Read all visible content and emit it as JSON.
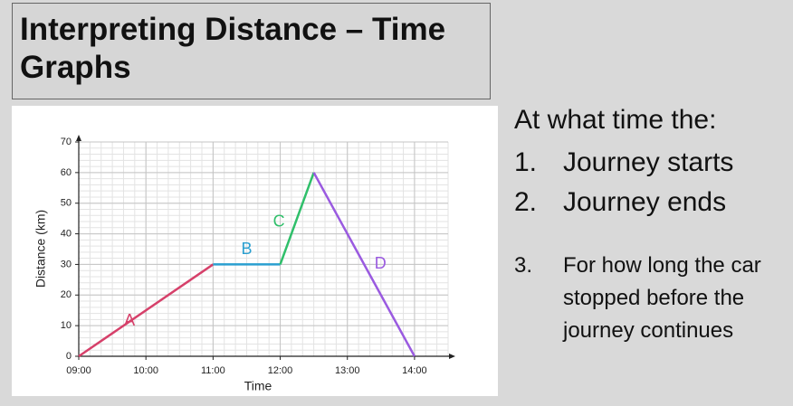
{
  "title": "Interpreting Distance – Time Graphs",
  "chart_data": {
    "type": "line",
    "xlabel": "Time",
    "ylabel": "Distance (km)",
    "xlim": [
      9,
      14.5
    ],
    "ylim": [
      0,
      70
    ],
    "xticks": [
      {
        "value": 9,
        "label": "09:00"
      },
      {
        "value": 10,
        "label": "10:00"
      },
      {
        "value": 11,
        "label": "11:00"
      },
      {
        "value": 12,
        "label": "12:00"
      },
      {
        "value": 13,
        "label": "13:00"
      },
      {
        "value": 14,
        "label": "14:00"
      }
    ],
    "yticks": [
      0,
      10,
      20,
      30,
      40,
      50,
      60,
      70
    ],
    "grid": true,
    "series": [
      {
        "name": "A",
        "color": "#d6406a",
        "x": [
          9,
          11
        ],
        "values": [
          0,
          30
        ]
      },
      {
        "name": "B",
        "color": "#2a9fd0",
        "x": [
          11,
          12
        ],
        "values": [
          30,
          30
        ]
      },
      {
        "name": "C",
        "color": "#2fbf6a",
        "x": [
          12,
          12.5
        ],
        "values": [
          30,
          60
        ]
      },
      {
        "name": "D",
        "color": "#9a5ae0",
        "x": [
          12.5,
          14
        ],
        "values": [
          60,
          0
        ]
      }
    ]
  },
  "questions": {
    "intro": "At what time the:",
    "items": [
      {
        "number": "1.",
        "text": "Journey starts"
      },
      {
        "number": "2.",
        "text": "Journey ends"
      },
      {
        "number": "3.",
        "text": "For how long the car stopped before the journey continues"
      }
    ]
  }
}
